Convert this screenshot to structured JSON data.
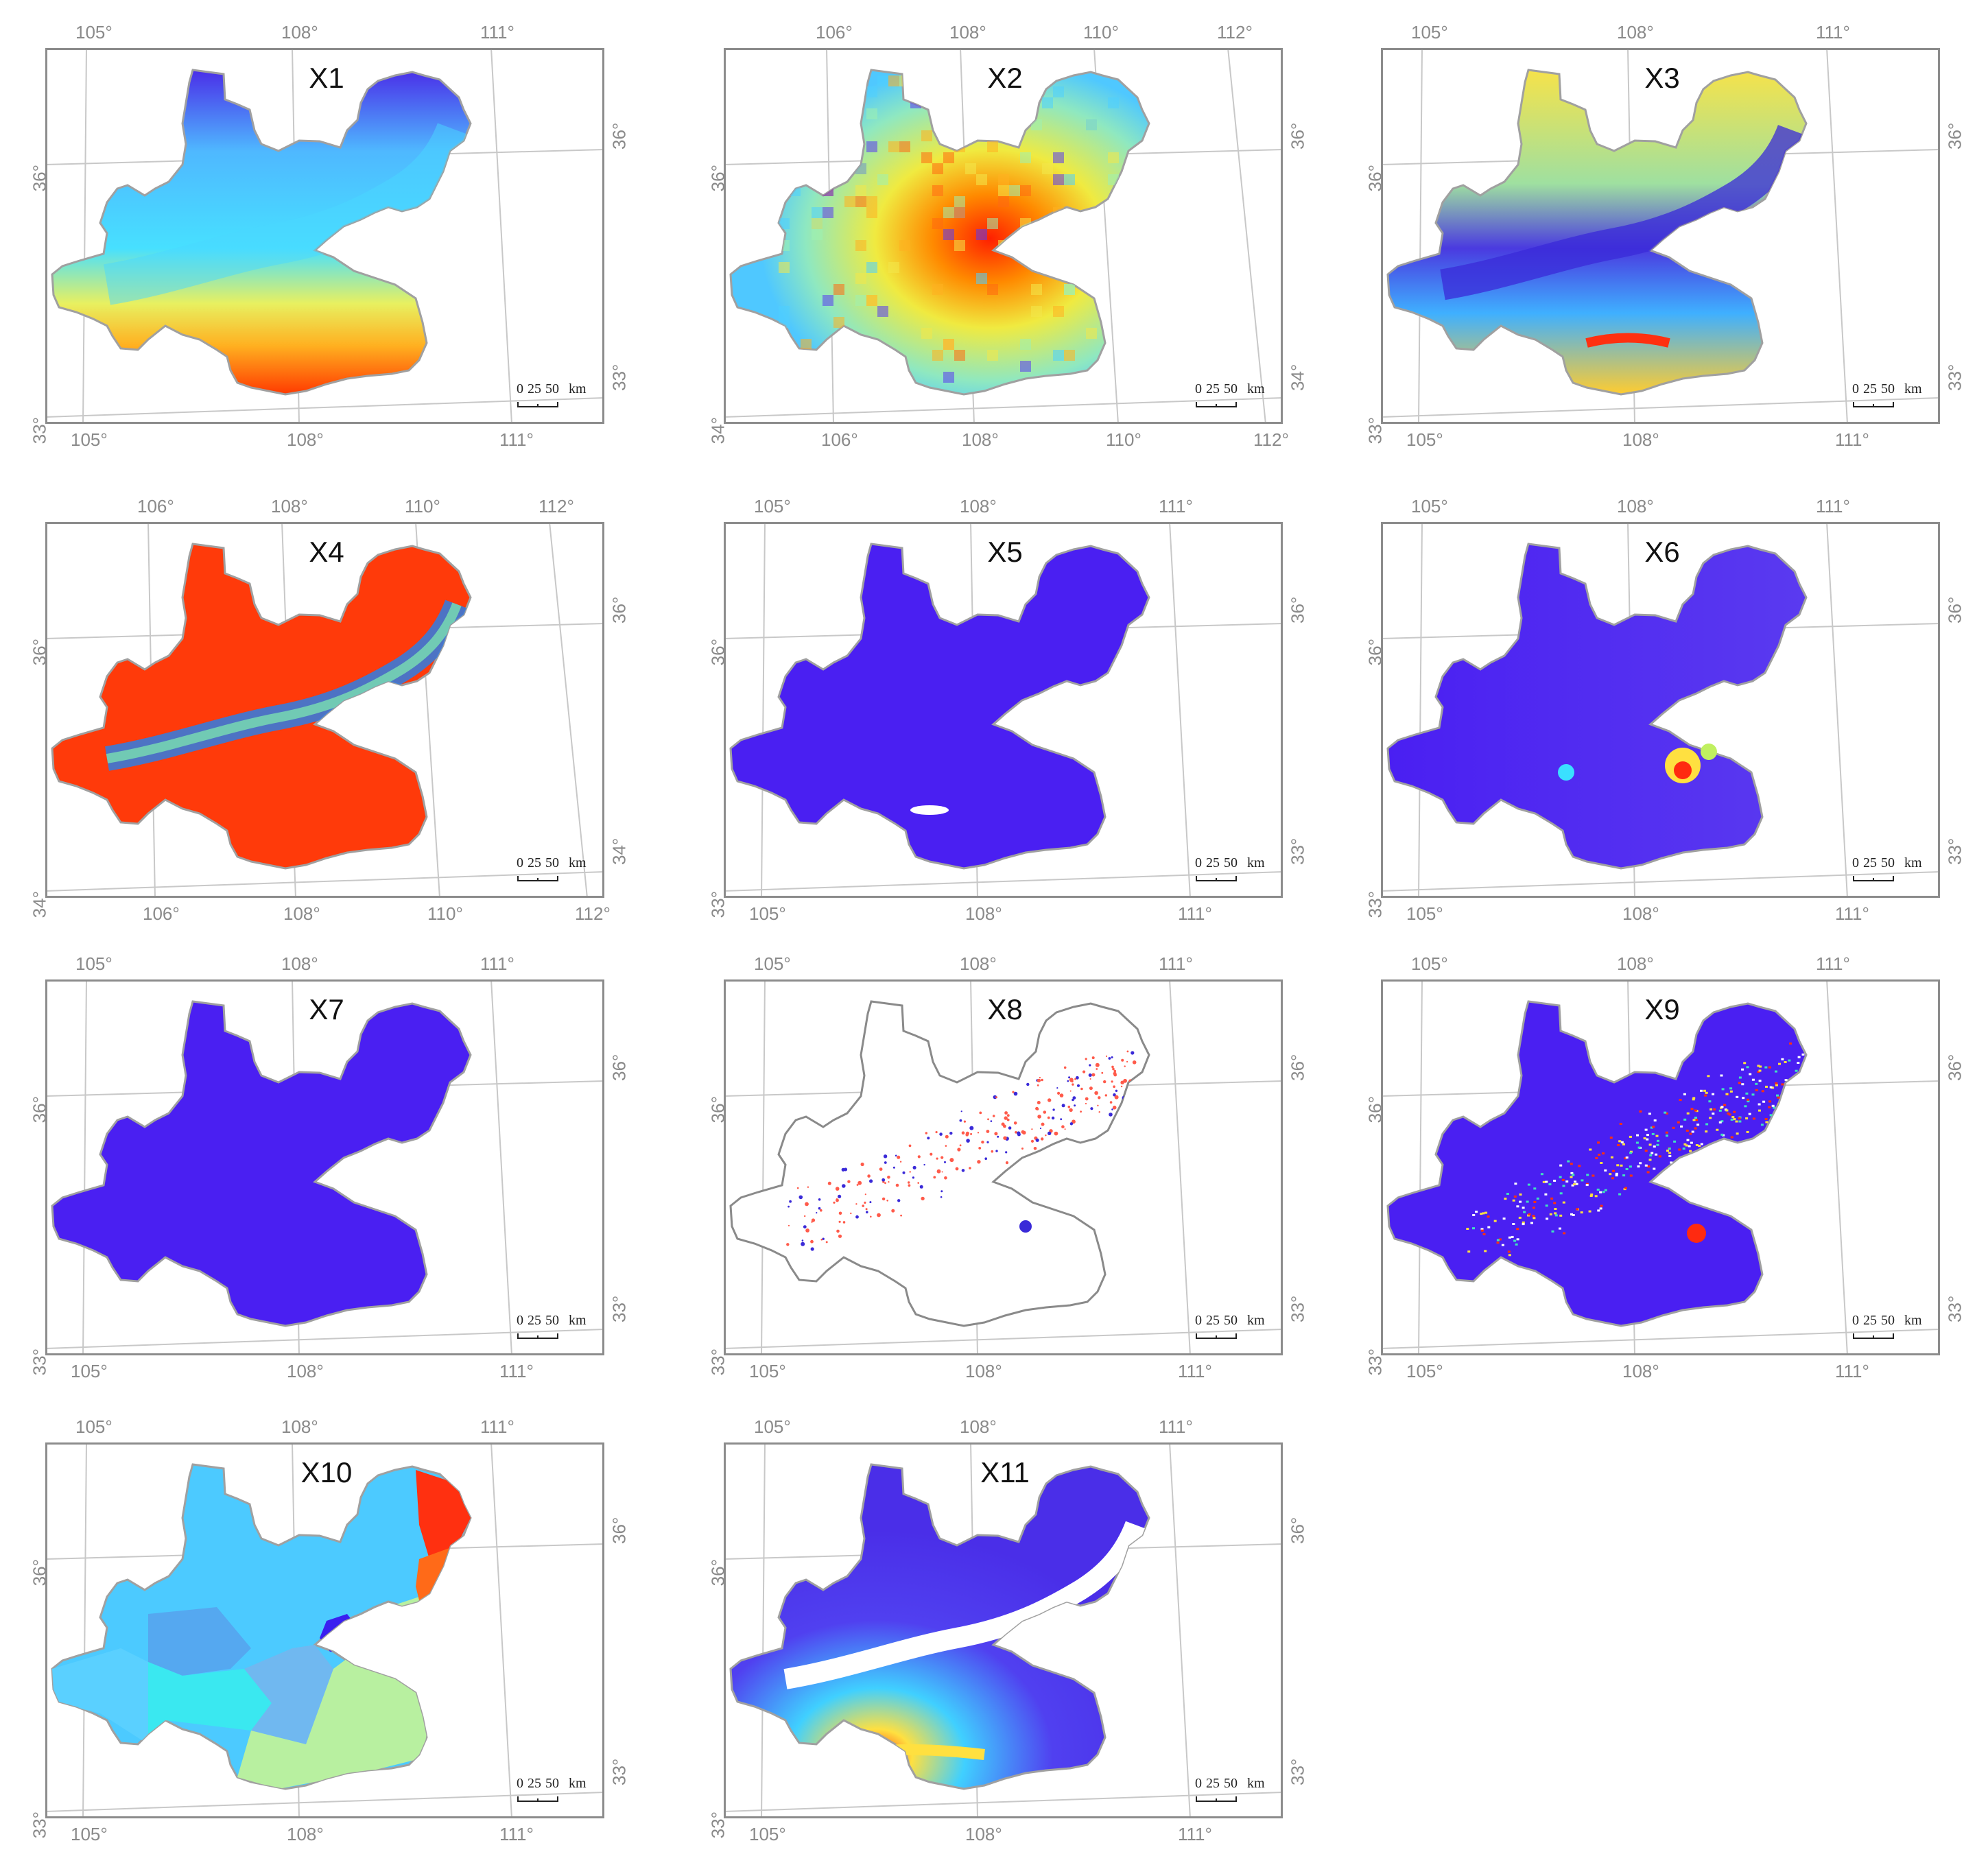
{
  "scale_bar": {
    "ticks": [
      "0",
      "25",
      "50"
    ],
    "unit": "km"
  },
  "colors": {
    "frame": "#8c8c8c",
    "graticule": "#c8c8c8",
    "outline": "#a0a0a0",
    "jet_low": "#3b1ce6",
    "jet_mid": "#38e0ff",
    "jet_high": "#ff2a00"
  },
  "panels": [
    {
      "id": "X1",
      "title": "X1",
      "top_lon": [
        "105°",
        "108°",
        "111°"
      ],
      "bottom_lon": [
        "105°",
        "108°",
        "111°"
      ],
      "left_lat": [
        "36°",
        "33°"
      ],
      "right_lat": [
        "36°",
        "33°"
      ],
      "style": "gradient-north-south"
    },
    {
      "id": "X2",
      "title": "X2",
      "top_lon": [
        "106°",
        "108°",
        "110°",
        "112°"
      ],
      "bottom_lon": [
        "106°",
        "108°",
        "110°",
        "112°"
      ],
      "left_lat": [
        "36°",
        "34°"
      ],
      "right_lat": [
        "36°",
        "34°"
      ],
      "style": "pixelated-hot-core"
    },
    {
      "id": "X3",
      "title": "X3",
      "top_lon": [
        "105°",
        "108°",
        "111°"
      ],
      "bottom_lon": [
        "105°",
        "108°",
        "111°"
      ],
      "left_lat": [
        "36°",
        "33°"
      ],
      "right_lat": [
        "36°",
        "33°"
      ],
      "style": "valley-low"
    },
    {
      "id": "X4",
      "title": "X4",
      "top_lon": [
        "106°",
        "108°",
        "110°",
        "112°"
      ],
      "bottom_lon": [
        "106°",
        "108°",
        "110°",
        "112°"
      ],
      "left_lat": [
        "36°",
        "34°"
      ],
      "right_lat": [
        "36°",
        "34°"
      ],
      "style": "red-with-blue-valley"
    },
    {
      "id": "X5",
      "title": "X5",
      "top_lon": [
        "105°",
        "108°",
        "111°"
      ],
      "bottom_lon": [
        "105°",
        "108°",
        "111°"
      ],
      "left_lat": [
        "36°",
        "33°"
      ],
      "right_lat": [
        "36°",
        "33°"
      ],
      "style": "uniform-blue"
    },
    {
      "id": "X6",
      "title": "X6",
      "top_lon": [
        "105°",
        "108°",
        "111°"
      ],
      "bottom_lon": [
        "105°",
        "108°",
        "111°"
      ],
      "left_lat": [
        "36°",
        "33°"
      ],
      "right_lat": [
        "36°",
        "33°"
      ],
      "style": "blue-with-hotspots"
    },
    {
      "id": "X7",
      "title": "X7",
      "top_lon": [
        "105°",
        "108°",
        "111°"
      ],
      "bottom_lon": [
        "105°",
        "108°",
        "111°"
      ],
      "left_lat": [
        "36°",
        "33°"
      ],
      "right_lat": [
        "36°",
        "33°"
      ],
      "style": "uniform-blue"
    },
    {
      "id": "X8",
      "title": "X8",
      "top_lon": [
        "105°",
        "108°",
        "111°"
      ],
      "bottom_lon": [
        "105°",
        "108°",
        "111°"
      ],
      "left_lat": [
        "36°",
        "33°"
      ],
      "right_lat": [
        "36°",
        "33°"
      ],
      "style": "sparse-points"
    },
    {
      "id": "X9",
      "title": "X9",
      "top_lon": [
        "105°",
        "108°",
        "111°"
      ],
      "bottom_lon": [
        "105°",
        "108°",
        "111°"
      ],
      "left_lat": [
        "36°",
        "33°"
      ],
      "right_lat": [
        "36°",
        "33°"
      ],
      "style": "blue-speckled"
    },
    {
      "id": "X10",
      "title": "X10",
      "top_lon": [
        "105°",
        "108°",
        "111°"
      ],
      "bottom_lon": [
        "105°",
        "108°",
        "111°"
      ],
      "left_lat": [
        "36°",
        "33°"
      ],
      "right_lat": [
        "36°",
        "33°"
      ],
      "style": "categorical-regions"
    },
    {
      "id": "X11",
      "title": "X11",
      "top_lon": [
        "105°",
        "108°",
        "111°"
      ],
      "bottom_lon": [
        "105°",
        "108°",
        "111°"
      ],
      "left_lat": [
        "36°",
        "33°"
      ],
      "right_lat": [
        "36°",
        "33°"
      ],
      "style": "blue-with-white-valley"
    }
  ]
}
